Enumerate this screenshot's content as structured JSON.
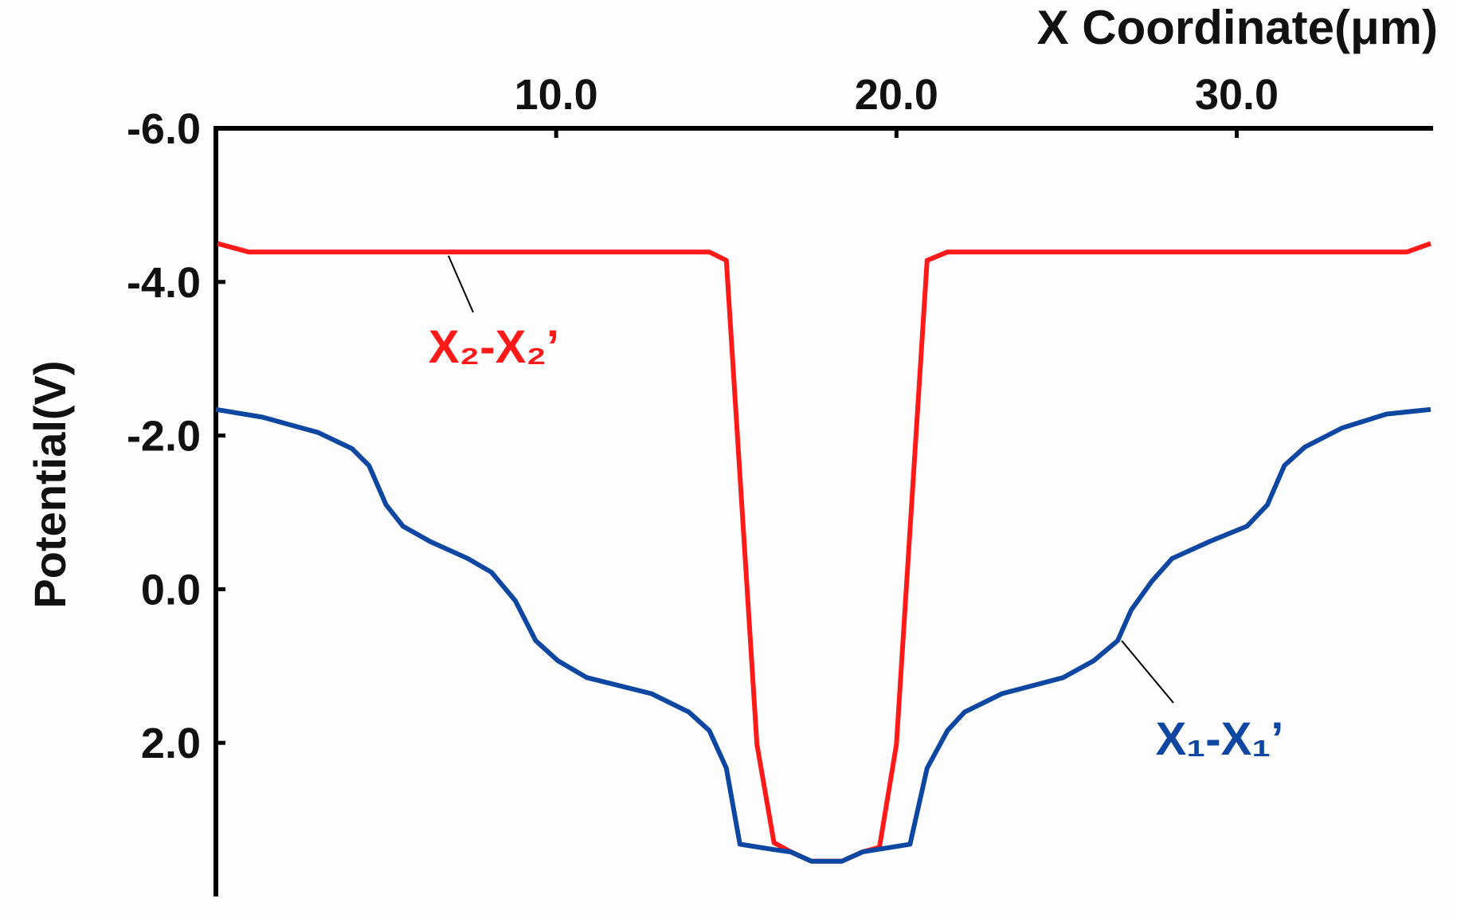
{
  "chart_data": {
    "type": "line",
    "x_label": "X Coordinate(μm)",
    "y_label": "Potential(V)",
    "xlim": [
      0,
      35.7
    ],
    "xticks": [
      {
        "value": 10,
        "label": "10.0"
      },
      {
        "value": 20,
        "label": "20.0"
      },
      {
        "value": 30,
        "label": "30.0"
      }
    ],
    "ylim": [
      -6,
      4
    ],
    "y_inverted": true,
    "yticks": [
      {
        "value": -6,
        "label": "-6.0"
      },
      {
        "value": -4,
        "label": "-4.0"
      },
      {
        "value": -2,
        "label": "-2.0"
      },
      {
        "value": 0,
        "label": "0.0"
      },
      {
        "value": 2,
        "label": "2.0"
      }
    ],
    "legend": false,
    "series": [
      {
        "name": "X₂-X₂’",
        "color": "#ff1a1a",
        "x": [
          0.05,
          0.96,
          14.5,
          15.0,
          15.9,
          16.4,
          16.9,
          17.5,
          18.4,
          19.0,
          19.5,
          20.0,
          20.9,
          21.5,
          35.0,
          35.7
        ],
        "values": [
          -4.5,
          -4.39,
          -4.39,
          -4.28,
          2.02,
          3.3,
          3.42,
          3.54,
          3.54,
          3.42,
          3.36,
          2.02,
          -4.28,
          -4.39,
          -4.39,
          -4.5
        ]
      },
      {
        "name": "X₁-X₁’",
        "color": "#0d47a1",
        "x": [
          0,
          1.37,
          3.0,
          4.0,
          4.5,
          5.0,
          5.5,
          6.3,
          7.4,
          8.1,
          8.8,
          9.4,
          10.05,
          10.9,
          12.8,
          13.9,
          14.5,
          15.0,
          15.4,
          16.4,
          16.9,
          17.5,
          18.4,
          19.0,
          20.4,
          20.9,
          21.5,
          22.0,
          23.1,
          24.9,
          25.8,
          26.5,
          26.9,
          27.5,
          28.1,
          29.2,
          30.3,
          30.9,
          31.4,
          32.0,
          33.1,
          34.4,
          35.7
        ],
        "values": [
          -2.34,
          -2.24,
          -2.04,
          -1.83,
          -1.61,
          -1.1,
          -0.82,
          -0.62,
          -0.4,
          -0.22,
          0.15,
          0.67,
          0.93,
          1.15,
          1.36,
          1.6,
          1.84,
          2.33,
          3.32,
          3.39,
          3.42,
          3.54,
          3.54,
          3.42,
          3.32,
          2.33,
          1.84,
          1.6,
          1.36,
          1.15,
          0.93,
          0.67,
          0.27,
          -0.1,
          -0.4,
          -0.62,
          -0.82,
          -1.1,
          -1.61,
          -1.85,
          -2.1,
          -2.28,
          -2.34
        ]
      }
    ]
  }
}
